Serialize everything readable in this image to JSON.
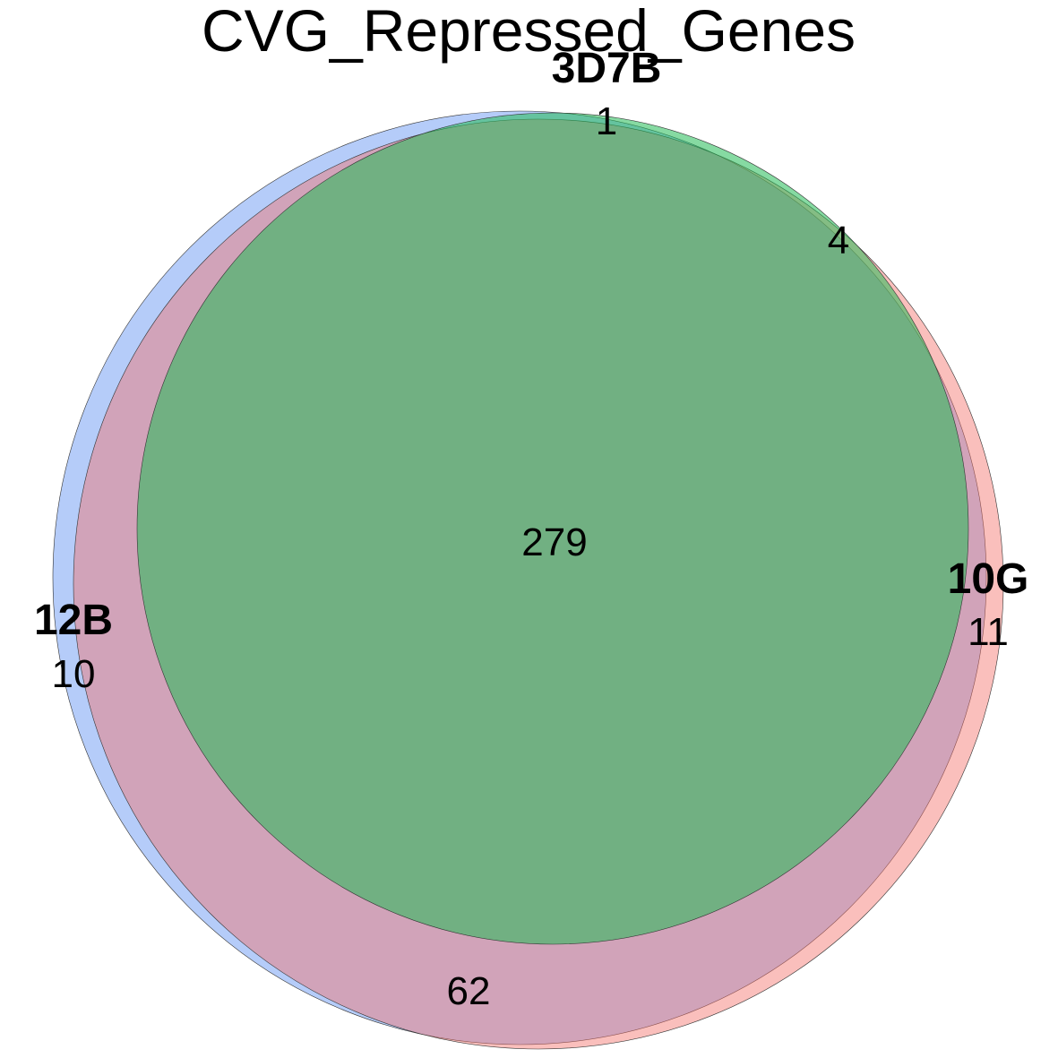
{
  "title": "CVG_Repressed_Genes",
  "sets": [
    {
      "id": "12B",
      "label": "12B",
      "color": "#5B8FF2"
    },
    {
      "id": "10G",
      "label": "10G",
      "color": "#F4726A"
    },
    {
      "id": "3D7B",
      "label": "3D7B",
      "color": "#22BB55"
    }
  ],
  "regions": [
    {
      "sets": [
        "12B"
      ],
      "count": "10"
    },
    {
      "sets": [
        "10G"
      ],
      "count": "11"
    },
    {
      "sets": [
        "3D7B"
      ],
      "count": "1"
    },
    {
      "sets": [
        "12B",
        "10G"
      ],
      "count": "62"
    },
    {
      "sets": [
        "10G",
        "3D7B"
      ],
      "count": "4"
    },
    {
      "sets": [
        "12B",
        "10G",
        "3D7B"
      ],
      "count": "279"
    }
  ]
}
